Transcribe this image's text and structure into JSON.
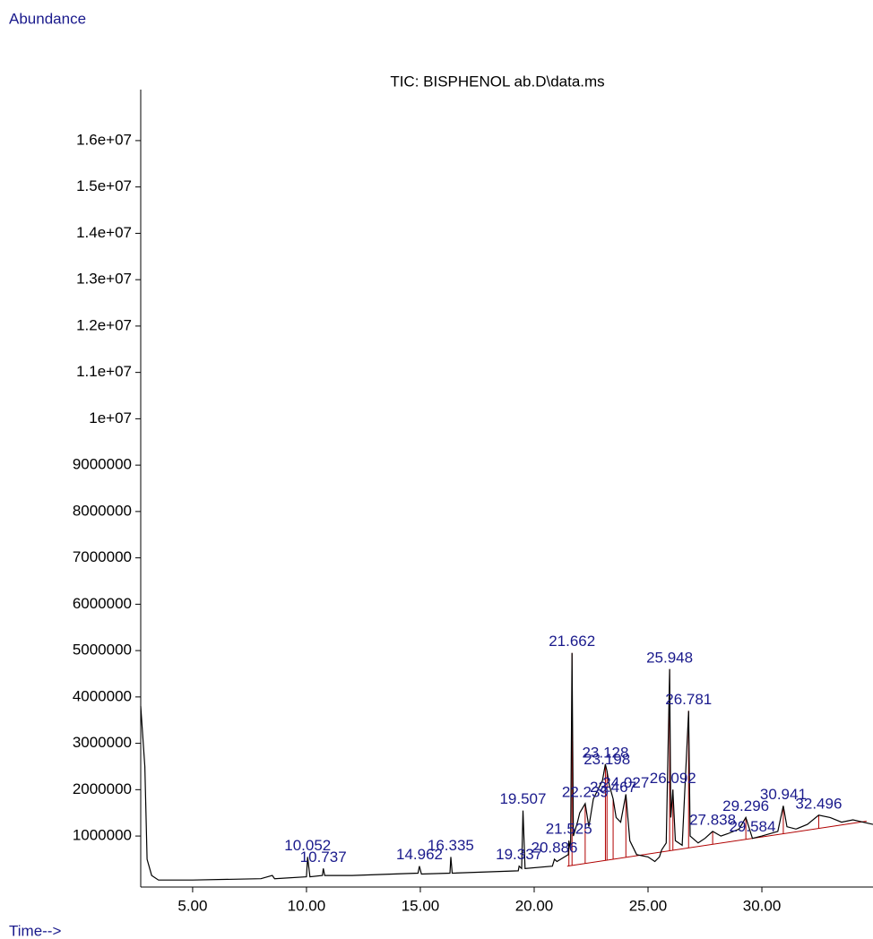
{
  "chart_data": {
    "type": "line",
    "title": "TIC: BISPHENOL ab.D\\data.ms",
    "y_label": "Abundance",
    "x_label": "Time-->",
    "xlim": [
      2.72,
      34.88
    ],
    "ylim": [
      -100000,
      17100000
    ],
    "xticks": [
      {
        "value": 5,
        "label": "5.00"
      },
      {
        "value": 10,
        "label": "10.00"
      },
      {
        "value": 15,
        "label": "15.00"
      },
      {
        "value": 20,
        "label": "20.00"
      },
      {
        "value": 25,
        "label": "25.00"
      },
      {
        "value": 30,
        "label": "30.00"
      }
    ],
    "yticks": [
      1000000,
      2000000,
      3000000,
      4000000,
      5000000,
      6000000,
      7000000,
      8000000,
      9000000,
      {
        "value": 10000000,
        "label": "1e+07"
      },
      {
        "value": 11000000,
        "label": "1.1e+07"
      },
      {
        "value": 12000000,
        "label": "1.2e+07"
      },
      {
        "value": 13000000,
        "label": "1.3e+07"
      },
      {
        "value": 14000000,
        "label": "1.4e+07"
      },
      {
        "value": 15000000,
        "label": "1.5e+07"
      },
      {
        "value": 16000000,
        "label": "1.6e+07"
      }
    ],
    "x": [
      2.72,
      2.9,
      3.0,
      3.2,
      3.5,
      5,
      8,
      8.5,
      8.6,
      10.0,
      10.05,
      10.15,
      10.7,
      10.74,
      10.8,
      12,
      14.9,
      14.96,
      15.05,
      16.3,
      16.34,
      16.4,
      19.3,
      19.34,
      19.45,
      19.51,
      19.6,
      20.8,
      20.89,
      21.0,
      21.5,
      21.525,
      21.6,
      21.662,
      21.72,
      21.9,
      22.0,
      22.24,
      22.4,
      22.6,
      22.8,
      23.0,
      23.128,
      23.198,
      23.3,
      23.467,
      23.6,
      23.8,
      24.027,
      24.2,
      24.5,
      25.0,
      25.3,
      25.5,
      25.6,
      25.8,
      25.948,
      26.0,
      26.092,
      26.2,
      26.5,
      26.781,
      26.85,
      27.2,
      27.5,
      27.838,
      28.2,
      28.5,
      29.0,
      29.296,
      29.584,
      30.0,
      30.7,
      30.941,
      31.1,
      31.5,
      32.0,
      32.496,
      33.0,
      33.5,
      34.0,
      34.88
    ],
    "series": [
      {
        "color": "#000000",
        "values": [
          3800000,
          2500000,
          500000,
          150000,
          50000,
          50000,
          80000,
          150000,
          80000,
          120000,
          550000,
          120000,
          150000,
          300000,
          150000,
          150000,
          200000,
          350000,
          180000,
          200000,
          550000,
          200000,
          250000,
          350000,
          300000,
          1550000,
          300000,
          350000,
          500000,
          450000,
          600000,
          900000,
          700000,
          4950000,
          1000000,
          1300000,
          1500000,
          1700000,
          1200000,
          1800000,
          2000000,
          2200000,
          2550000,
          2400000,
          2100000,
          1800000,
          1400000,
          1300000,
          1900000,
          900000,
          600000,
          550000,
          450000,
          550000,
          700000,
          850000,
          4600000,
          1400000,
          2000000,
          900000,
          800000,
          3700000,
          1000000,
          850000,
          950000,
          1100000,
          1000000,
          1050000,
          1150000,
          1400000,
          950000,
          1000000,
          1100000,
          1650000,
          1200000,
          1150000,
          1250000,
          1450000,
          1400000,
          1300000,
          1350000,
          1250000
        ]
      }
    ],
    "peaks": [
      {
        "time": 10.052,
        "abundance": 550000
      },
      {
        "time": 10.737,
        "abundance": 300000
      },
      {
        "time": 14.962,
        "abundance": 350000
      },
      {
        "time": 16.335,
        "abundance": 550000
      },
      {
        "time": 19.337,
        "abundance": 350000
      },
      {
        "time": 19.507,
        "abundance": 1550000
      },
      {
        "time": 20.886,
        "abundance": 500000
      },
      {
        "time": 21.525,
        "abundance": 900000
      },
      {
        "time": 21.662,
        "abundance": 4950000
      },
      {
        "time": 22.239,
        "abundance": 1700000
      },
      {
        "time": 23.128,
        "abundance": 2550000
      },
      {
        "time": 23.198,
        "abundance": 2400000
      },
      {
        "time": 23.467,
        "abundance": 1800000
      },
      {
        "time": 24.027,
        "abundance": 1900000
      },
      {
        "time": 25.948,
        "abundance": 4600000
      },
      {
        "time": 26.092,
        "abundance": 2000000
      },
      {
        "time": 26.781,
        "abundance": 3700000
      },
      {
        "time": 27.838,
        "abundance": 1100000
      },
      {
        "time": 29.296,
        "abundance": 1400000
      },
      {
        "time": 29.584,
        "abundance": 950000
      },
      {
        "time": 30.941,
        "abundance": 1650000
      },
      {
        "time": 32.496,
        "abundance": 1450000
      }
    ],
    "label_color": "#1a1a8c",
    "baseline": {
      "x": [
        21.45,
        34.6
      ],
      "values": [
        350000,
        1320000
      ],
      "color": "#b00000"
    }
  }
}
